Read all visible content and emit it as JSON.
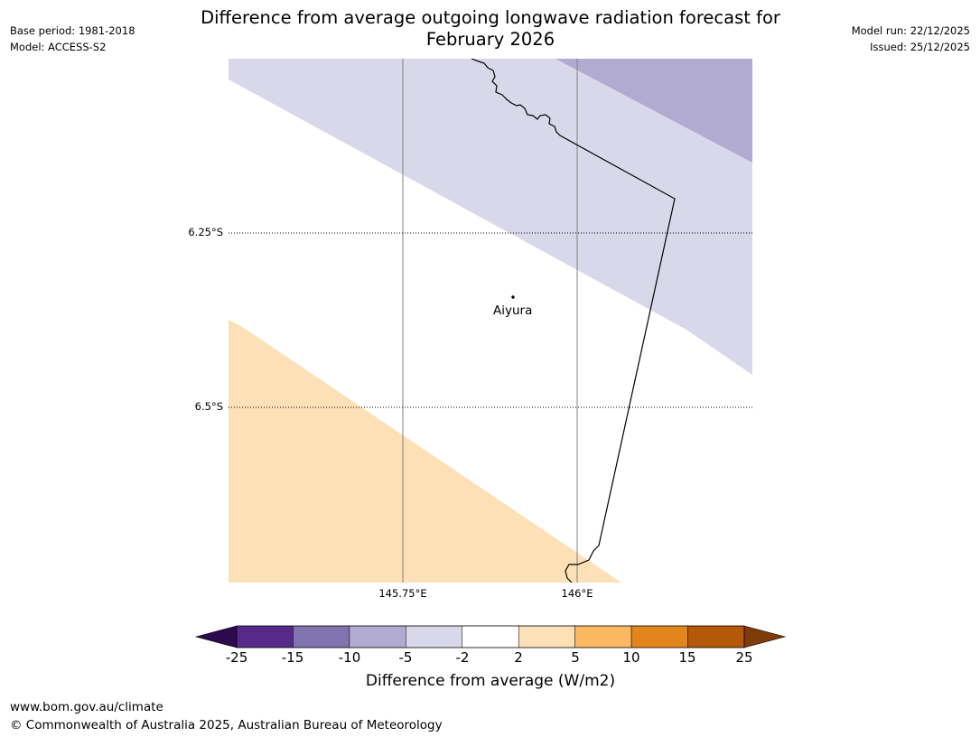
{
  "title_line1": "Difference from average outgoing longwave radiation forecast for",
  "title_line2": "February 2026",
  "meta_left": {
    "base_period": "Base period: 1981-2018",
    "model": "Model: ACCESS-S2"
  },
  "meta_right": {
    "model_run": "Model run: 22/12/2025",
    "issued": "Issued: 25/12/2025"
  },
  "map": {
    "lat_labels": [
      "6.25°S",
      "6.5°S"
    ],
    "lon_labels": [
      "145.75°E",
      "146°E"
    ],
    "place": {
      "name": "Aiyura"
    },
    "colors": {
      "band_light_purple": "#d8d8ea",
      "band_mid_purple": "#b1aad1",
      "band_light_orange": "#fde0b6",
      "gridline": "#808080",
      "coastline": "#000000"
    }
  },
  "colorbar": {
    "label": "Difference from average (W/m2)",
    "ticks": [
      "-25",
      "-15",
      "-10",
      "-5",
      "-2",
      "2",
      "5",
      "10",
      "15",
      "25"
    ],
    "colors": [
      "#572a8a",
      "#8172b0",
      "#b1aad1",
      "#d8d8ea",
      "#ffffff",
      "#fde0b6",
      "#fbb862",
      "#e3851d",
      "#b4580a"
    ],
    "extend_low_color": "#2d0a4b",
    "extend_high_color": "#7f3b08"
  },
  "footer": {
    "url": "www.bom.gov.au/climate",
    "copyright": "© Commonwealth of Australia 2025, Australian Bureau of Meteorology"
  }
}
